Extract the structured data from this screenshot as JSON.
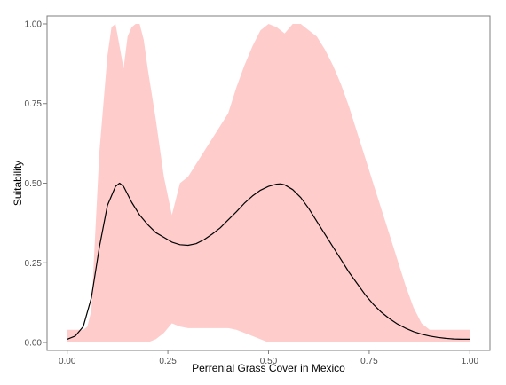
{
  "chart_data": {
    "type": "area",
    "title": "",
    "xlabel": "Perrenial Grass Cover in Mexico",
    "ylabel": "Suitability",
    "xlim": [
      -0.05,
      1.05
    ],
    "ylim": [
      -0.025,
      1.025
    ],
    "grid": false,
    "legend": "none",
    "x_ticks": [
      0.0,
      0.25,
      0.5,
      0.75,
      1.0
    ],
    "x_tick_labels": [
      "0.00",
      "0.25",
      "0.50",
      "0.75",
      "1.00"
    ],
    "y_ticks": [
      0.0,
      0.25,
      0.5,
      0.75,
      1.0
    ],
    "y_tick_labels": [
      "0.00",
      "0.25",
      "0.50",
      "0.75",
      "1.00"
    ],
    "colors": {
      "band": "#ffcccc",
      "line": "#000000",
      "frame": "#7f7f7f"
    },
    "band": {
      "x": [
        0.0,
        0.02,
        0.04,
        0.05,
        0.06,
        0.07,
        0.08,
        0.09,
        0.1,
        0.11,
        0.12,
        0.13,
        0.14,
        0.15,
        0.16,
        0.17,
        0.18,
        0.19,
        0.2,
        0.22,
        0.24,
        0.26,
        0.28,
        0.3,
        0.32,
        0.34,
        0.36,
        0.38,
        0.4,
        0.42,
        0.44,
        0.46,
        0.48,
        0.5,
        0.52,
        0.54,
        0.56,
        0.58,
        0.6,
        0.62,
        0.64,
        0.66,
        0.68,
        0.7,
        0.72,
        0.74,
        0.76,
        0.78,
        0.8,
        0.82,
        0.84,
        0.86,
        0.88,
        0.9,
        0.92,
        0.94,
        0.96,
        0.98,
        1.0
      ],
      "upper": [
        0.04,
        0.04,
        0.04,
        0.05,
        0.1,
        0.35,
        0.6,
        0.75,
        0.9,
        0.99,
        1.0,
        0.93,
        0.86,
        0.96,
        0.99,
        1.0,
        1.0,
        0.95,
        0.86,
        0.7,
        0.52,
        0.4,
        0.5,
        0.52,
        0.56,
        0.6,
        0.64,
        0.68,
        0.72,
        0.8,
        0.87,
        0.93,
        0.98,
        1.0,
        0.99,
        0.97,
        1.0,
        1.0,
        0.98,
        0.96,
        0.92,
        0.87,
        0.81,
        0.74,
        0.66,
        0.58,
        0.5,
        0.42,
        0.34,
        0.26,
        0.18,
        0.11,
        0.06,
        0.04,
        0.04,
        0.04,
        0.04,
        0.04,
        0.04
      ],
      "lower": [
        0.0,
        0.0,
        0.0,
        0.0,
        0.0,
        0.0,
        0.0,
        0.0,
        0.0,
        0.0,
        0.0,
        0.0,
        0.0,
        0.0,
        0.0,
        0.0,
        0.0,
        0.0,
        0.0,
        0.01,
        0.03,
        0.06,
        0.05,
        0.045,
        0.045,
        0.045,
        0.045,
        0.045,
        0.045,
        0.04,
        0.03,
        0.02,
        0.01,
        0.0,
        0.0,
        0.0,
        0.0,
        0.0,
        0.0,
        0.0,
        0.0,
        0.0,
        0.0,
        0.0,
        0.0,
        0.0,
        0.0,
        0.0,
        0.0,
        0.0,
        0.0,
        0.0,
        0.0,
        0.0,
        0.0,
        0.0,
        0.0,
        0.0,
        0.0
      ]
    },
    "series": [
      {
        "x": [
          0.0,
          0.02,
          0.04,
          0.06,
          0.08,
          0.1,
          0.12,
          0.13,
          0.14,
          0.16,
          0.18,
          0.2,
          0.22,
          0.24,
          0.26,
          0.28,
          0.3,
          0.32,
          0.34,
          0.36,
          0.38,
          0.4,
          0.42,
          0.44,
          0.46,
          0.48,
          0.5,
          0.52,
          0.53,
          0.54,
          0.56,
          0.58,
          0.6,
          0.62,
          0.64,
          0.66,
          0.68,
          0.7,
          0.72,
          0.74,
          0.76,
          0.78,
          0.8,
          0.82,
          0.84,
          0.86,
          0.88,
          0.9,
          0.92,
          0.94,
          0.96,
          0.98,
          1.0
        ],
        "y": [
          0.01,
          0.02,
          0.05,
          0.14,
          0.3,
          0.43,
          0.49,
          0.5,
          0.49,
          0.44,
          0.4,
          0.37,
          0.345,
          0.33,
          0.315,
          0.307,
          0.305,
          0.31,
          0.323,
          0.34,
          0.36,
          0.385,
          0.41,
          0.437,
          0.46,
          0.478,
          0.49,
          0.497,
          0.498,
          0.495,
          0.48,
          0.455,
          0.42,
          0.38,
          0.34,
          0.3,
          0.26,
          0.22,
          0.185,
          0.15,
          0.12,
          0.095,
          0.075,
          0.058,
          0.045,
          0.034,
          0.026,
          0.02,
          0.016,
          0.013,
          0.011,
          0.01,
          0.01
        ]
      }
    ]
  }
}
